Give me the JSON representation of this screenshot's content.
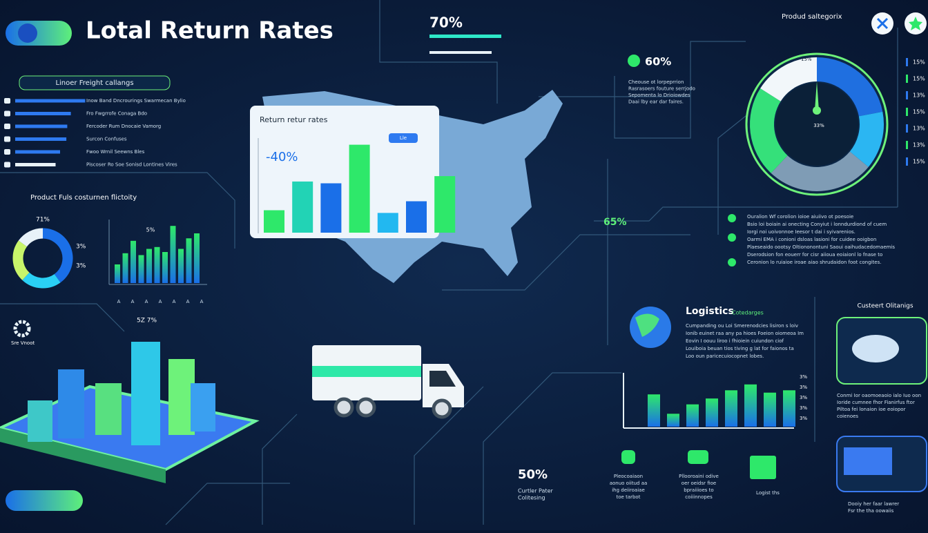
{
  "header": {
    "title": "Lotal Return Rates",
    "stat": "70%"
  },
  "category_label": "Produd saltegorix",
  "freight_panel": {
    "title": "Linoer Freight callangs",
    "rows": [
      {
        "label": "Inow Band Dncrourings Swarmecan Bylio",
        "value": 78
      },
      {
        "label": "Fro Fwgrrofe Conaga Bdo",
        "value": 62
      },
      {
        "label": "Fercoder Rum Dnocaie Vamorg",
        "value": 58
      },
      {
        "label": "Surcon Confuses",
        "value": 57
      },
      {
        "label": "Fwoo Wrnil Seewns Bles",
        "value": 50
      },
      {
        "label": "Piscoser Ro Soe Sonisd Lontines Vires",
        "value": 45
      }
    ]
  },
  "product_panel": {
    "title": "Product Fuls costurnen flictoity",
    "donut_label": "71%",
    "legend": [
      "3%",
      "3%"
    ],
    "donut": [
      {
        "value": 40,
        "color": "#1a6fe8"
      },
      {
        "value": 22,
        "color": "#2ad0f5"
      },
      {
        "value": 23,
        "color": "#c8f56a"
      },
      {
        "value": 15,
        "color": "#e8f2f8"
      }
    ],
    "bar_label": "5%",
    "bars": [
      30,
      48,
      68,
      45,
      55,
      58,
      50,
      92,
      55,
      72,
      80
    ],
    "axis_labels": [
      "A",
      "A",
      "A",
      "A",
      "A",
      "A",
      "A"
    ]
  },
  "return_panel": {
    "title": "Return retur rates",
    "badge": "-40%",
    "button": "Lle",
    "bars": [
      {
        "value": 25,
        "color": "#2ee86a"
      },
      {
        "value": 57,
        "color": "#22d3b5"
      },
      {
        "value": 55,
        "color": "#1a6fe8"
      },
      {
        "value": 98,
        "color": "#2ee86a"
      },
      {
        "value": 22,
        "color": "#22b8f0"
      },
      {
        "value": 35,
        "color": "#1a6fe8"
      },
      {
        "value": 63,
        "color": "#2ee86a"
      }
    ]
  },
  "stat_60": {
    "value": "60%",
    "text": [
      "Cheouse ot lorpeprrion",
      "Rasrasoers fouture serrjodo",
      "Sepomenta lo Drioiowdes",
      "Daai lby ear dar faires."
    ]
  },
  "stat_65": {
    "value": "65%",
    "text": [
      "Ouralion Wf corolion ioioe aiuiivo ot poesoie",
      "Bsio loi boiain ai onecting Conyiut i lonndurdiond of cuem",
      "Iorgi noi uoivonnoe Ieesor t dai i syivarenios.",
      "Oarmi EMA i conioni dsloas lasioni for cuidee ooigbon",
      "Plaeseaido oootsy Oltiononontuni Saoui oaihudacedomaemis",
      "Dserodsion fon eouerr for cisr aiioua eoiaionl lo fnase to",
      "Ceronion lo ruiaioe iroae aiao shrudaidon foot congites."
    ]
  },
  "gauge": {
    "labels": [
      "15%",
      "33%"
    ],
    "segments": [
      {
        "value": 22,
        "color": "#1f6fe0"
      },
      {
        "value": 14,
        "color": "#2bb6f2"
      },
      {
        "value": 26,
        "color": "#7f9cb5"
      },
      {
        "value": 22,
        "color": "#35e07a"
      },
      {
        "value": 16,
        "color": "#f2f7fa"
      }
    ],
    "legend": [
      "15%",
      "15%",
      "13%",
      "15%",
      "13%",
      "13%",
      "15%"
    ]
  },
  "logistics": {
    "title": "Logistics",
    "subtitle": "Cotedarges",
    "text": [
      "Cumpanding ou Loi Smerenodcies lisiron s loiv",
      "Ionib euinet raa any pa hioes Foeion oiomeoa Im",
      "Eovin I oouu liroo i fhioiein cuiundon ciof",
      "Louiboia beuan tios tiving g lat for faionos ta",
      "Loo oun paricecuiocopnet lobes."
    ],
    "bars": [
      55,
      22,
      38,
      48,
      62,
      72,
      58,
      62
    ],
    "legend": [
      "3%",
      "3%",
      "3%",
      "3%",
      "3%"
    ]
  },
  "bottom": {
    "stat": "50%",
    "caption": [
      "Curtler Pater",
      "Colitesing"
    ],
    "items": [
      [
        "Pleocoaiaon",
        "aonuo oiitud aa",
        "ihg deiiroaiae",
        "toe tarbot"
      ],
      [
        "Pllooroaini odive",
        "oer oeidsr fioe",
        "bpraiiioes to",
        "coiiinnopes"
      ],
      [
        "Logist ths"
      ]
    ]
  },
  "customer": {
    "title": "Custeert Olitanigs",
    "text": [
      "Conmi Ior oaomoeaoio ialo Iuo oon",
      "Ioride cumnee fhor Fianirfus ftor",
      "Piltoa fei lonaion ioe eoiopor",
      "coienoes"
    ],
    "footer": [
      "Dooiy her faar lawrer",
      "Fsr the tha oowaiis"
    ]
  },
  "gear_label": "Sre Vnoot",
  "iso_label": "5Z 7%"
}
